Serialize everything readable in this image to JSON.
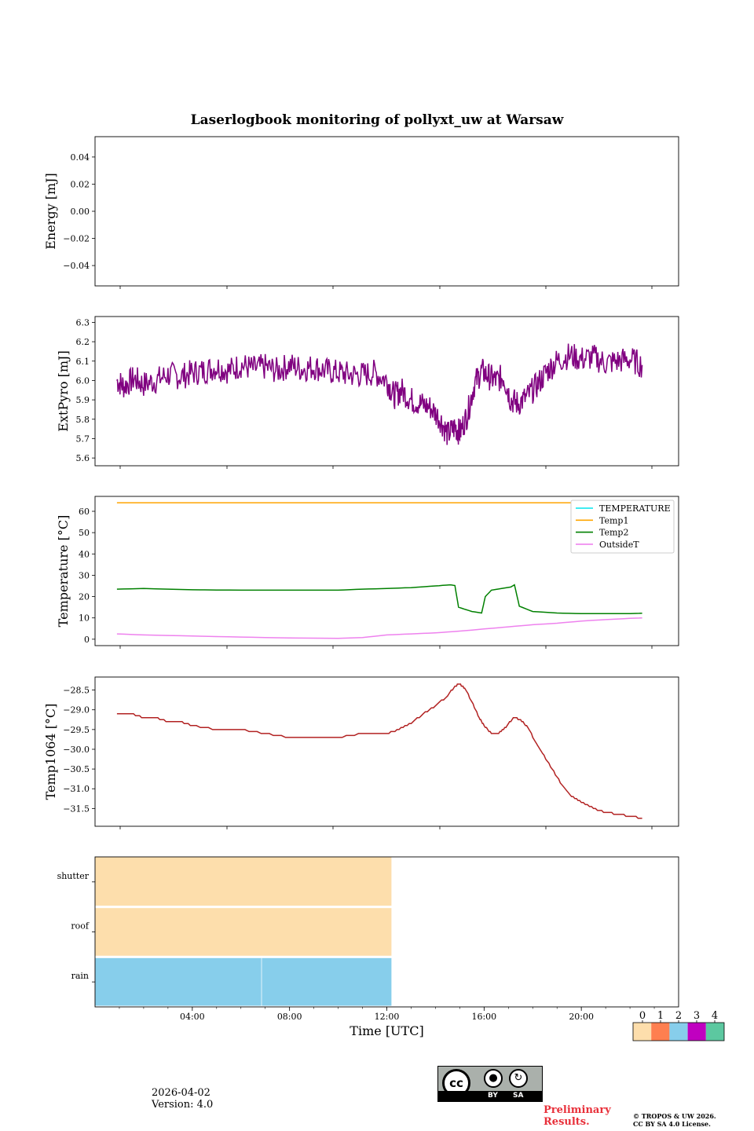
{
  "figure_title": "Laserlogbook monitoring of pollyxt_uw at Warsaw",
  "footer": {
    "date": "2026-04-02",
    "version": "Version: 4.0",
    "preliminary": "Preliminary Results.",
    "copyright_line1": "© TROPOS & UW 2026.",
    "copyright_line2": "CC BY SA 4.0 License."
  },
  "license_badge": {
    "main": "cc",
    "by": "BY",
    "sa": "SA"
  },
  "colors": {
    "extpyro": "#800080",
    "temperature": "#00e5ee",
    "temp1": "#ffa500",
    "temp2": "#008000",
    "outsideT": "#ee82ee",
    "temp1064": "#b22222"
  },
  "chart_data": [
    {
      "id": "energy",
      "type": "line",
      "ylabel": "Energy [mJ]",
      "ylim": [
        -0.055,
        0.055
      ],
      "yticks": [
        0.04,
        0.02,
        0.0,
        -0.02,
        -0.04
      ],
      "ytick_labels": [
        "0.04",
        "0.02",
        "0.00",
        "−0.02",
        "−0.04"
      ],
      "series": []
    },
    {
      "id": "extpyro",
      "type": "line",
      "ylabel": "ExtPyro [mJ]",
      "ylim": [
        5.56,
        6.33
      ],
      "yticks": [
        6.3,
        6.2,
        6.1,
        6.0,
        5.9,
        5.8,
        5.7,
        5.6
      ],
      "ytick_labels": [
        "6.3",
        "6.2",
        "6.1",
        "6.0",
        "5.9",
        "5.8",
        "5.7",
        "5.6"
      ],
      "series": [
        {
          "name": "ExtPyro",
          "color": "#800080",
          "x": [
            0.9,
            1.2,
            1.6,
            2.0,
            2.5,
            3.0,
            3.5,
            4.0,
            4.5,
            5.0,
            5.5,
            6.0,
            6.5,
            7.0,
            7.5,
            8.0,
            8.5,
            9.0,
            9.5,
            10.0,
            10.5,
            11.0,
            11.5,
            12.0,
            12.3,
            12.6,
            13.0,
            13.4,
            13.8,
            14.2,
            14.5,
            14.8,
            15.0,
            15.3,
            15.6,
            15.9,
            16.2,
            16.5,
            16.8,
            17.1,
            17.4,
            17.8,
            18.2,
            18.6,
            19.0,
            19.5,
            20.0,
            20.5,
            21.0,
            21.5,
            22.0,
            22.5
          ],
          "y": [
            6.0,
            5.97,
            6.01,
            5.98,
            6.0,
            6.03,
            6.02,
            6.04,
            6.05,
            6.07,
            6.05,
            6.08,
            6.06,
            6.07,
            6.05,
            6.08,
            6.06,
            6.07,
            6.05,
            6.04,
            6.03,
            6.03,
            6.04,
            6.0,
            5.92,
            5.95,
            5.9,
            5.88,
            5.86,
            5.8,
            5.72,
            5.76,
            5.73,
            5.82,
            5.98,
            6.05,
            6.02,
            6.0,
            6.02,
            5.9,
            5.88,
            5.92,
            5.98,
            6.05,
            6.1,
            6.13,
            6.11,
            6.12,
            6.09,
            6.1,
            6.11,
            6.08
          ]
        }
      ]
    },
    {
      "id": "temperature",
      "type": "line",
      "ylabel": "Temperature [°C]",
      "ylim": [
        -3,
        67
      ],
      "yticks": [
        60,
        50,
        40,
        30,
        20,
        10,
        0
      ],
      "ytick_labels": [
        "60",
        "50",
        "40",
        "30",
        "20",
        "10",
        "0"
      ],
      "legend_location": "top-right",
      "series": [
        {
          "name": "TEMPERATURE",
          "color": "#00e5ee",
          "x": [],
          "y": []
        },
        {
          "name": "Temp1",
          "color": "#ffa500",
          "x": [
            0.9,
            22.5
          ],
          "y": [
            64,
            64
          ]
        },
        {
          "name": "Temp2",
          "color": "#008000",
          "x": [
            0.9,
            2,
            4,
            6,
            8,
            10,
            11,
            12,
            13,
            14,
            14.6,
            14.8,
            14.95,
            15.5,
            15.9,
            16.05,
            16.3,
            17.1,
            17.25,
            17.45,
            18,
            19,
            20,
            21,
            22,
            22.5
          ],
          "y": [
            23.5,
            23.8,
            23.2,
            23.0,
            23.0,
            23.0,
            23.5,
            23.8,
            24.2,
            25.0,
            25.5,
            25.2,
            15.0,
            13.0,
            12.3,
            20.0,
            23.0,
            24.5,
            25.5,
            15.5,
            13.0,
            12.3,
            12.0,
            12.0,
            12.0,
            12.2
          ]
        },
        {
          "name": "OutsideT",
          "color": "#ee82ee",
          "x": [
            0.9,
            2,
            4,
            6,
            8,
            10,
            11,
            12,
            13,
            14,
            15,
            16,
            17,
            18,
            19,
            20,
            21,
            22,
            22.5
          ],
          "y": [
            2.5,
            2.0,
            1.5,
            1.0,
            0.6,
            0.4,
            0.8,
            2.0,
            2.5,
            3.0,
            3.8,
            4.8,
            5.8,
            6.8,
            7.5,
            8.5,
            9.2,
            9.8,
            10.0
          ]
        }
      ]
    },
    {
      "id": "temp1064",
      "type": "line",
      "ylabel": "Temp1064 [°C]",
      "ylim": [
        -31.95,
        -28.17
      ],
      "yticks": [
        -28.5,
        -29.0,
        -29.5,
        -30.0,
        -30.5,
        -31.0,
        -31.5
      ],
      "ytick_labels": [
        "−28.5",
        "−29.0",
        "−29.5",
        "−30.0",
        "−30.5",
        "−31.0",
        "−31.5"
      ],
      "series": [
        {
          "name": "Temp1064",
          "color": "#b22222",
          "x": [
            0.9,
            1.5,
            2.0,
            2.5,
            3.0,
            3.5,
            4.0,
            5.0,
            6.0,
            7.0,
            8.0,
            9.0,
            10.0,
            11.0,
            12.0,
            12.5,
            13.0,
            13.5,
            14.0,
            14.5,
            14.8,
            15.0,
            15.2,
            15.5,
            15.8,
            16.0,
            16.3,
            16.6,
            16.9,
            17.2,
            17.5,
            17.8,
            18.1,
            18.4,
            18.8,
            19.2,
            19.6,
            20.0,
            20.5,
            21.0,
            21.5,
            22.0,
            22.5
          ],
          "y": [
            -29.1,
            -29.1,
            -29.2,
            -29.2,
            -29.3,
            -29.3,
            -29.4,
            -29.5,
            -29.5,
            -29.6,
            -29.7,
            -29.7,
            -29.7,
            -29.6,
            -29.6,
            -29.5,
            -29.35,
            -29.1,
            -28.9,
            -28.65,
            -28.4,
            -28.35,
            -28.45,
            -28.8,
            -29.2,
            -29.4,
            -29.6,
            -29.6,
            -29.45,
            -29.2,
            -29.25,
            -29.45,
            -29.8,
            -30.1,
            -30.5,
            -30.9,
            -31.2,
            -31.35,
            -31.5,
            -31.6,
            -31.65,
            -31.7,
            -31.75
          ]
        }
      ]
    },
    {
      "id": "status",
      "type": "heatmap",
      "xlabel": "Time [UTC]",
      "rows": [
        "shutter",
        "roof",
        "rain"
      ],
      "blocks": [
        {
          "row": "shutter",
          "x0": 0,
          "x1": 12.2,
          "value": 0
        },
        {
          "row": "roof",
          "x0": 0,
          "x1": 12.2,
          "value": 0
        },
        {
          "row": "rain",
          "x0": 0,
          "x1": 6.85,
          "value": 2
        },
        {
          "row": "rain",
          "x0": 6.85,
          "x1": 12.2,
          "value": 2
        }
      ],
      "xlim": [
        0,
        24
      ],
      "xticks": [
        4,
        8,
        12,
        16,
        20
      ],
      "xtick_labels": [
        "04:00",
        "08:00",
        "12:00",
        "16:00",
        "20:00"
      ],
      "colorbar": {
        "ticks": [
          "0",
          "1",
          "2",
          "3",
          "4"
        ],
        "colors": [
          "#fddeac",
          "#fe7f50",
          "#87ceeb",
          "#c000c0",
          "#5cc8a0"
        ]
      }
    }
  ]
}
